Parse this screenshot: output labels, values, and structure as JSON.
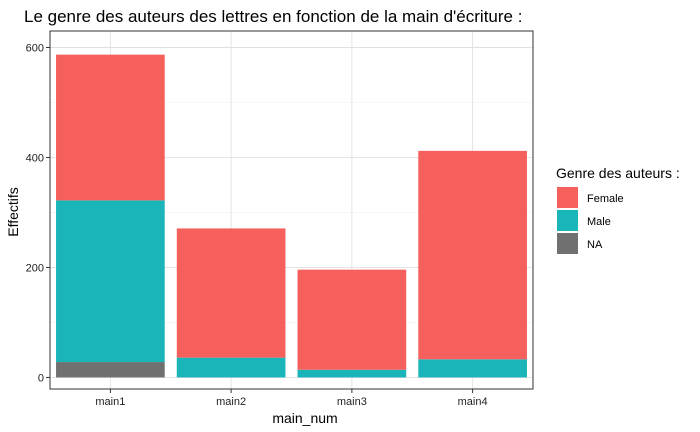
{
  "chart_data": {
    "type": "bar",
    "stacked": true,
    "title": "Le genre des auteurs des lettres en fonction de la main d'écriture :",
    "xlabel": "main_num",
    "ylabel": "Effectifs",
    "categories": [
      "main1",
      "main2",
      "main3",
      "main4"
    ],
    "series": [
      {
        "name": "NA",
        "color": "#707070",
        "values": [
          28,
          0,
          0,
          0
        ]
      },
      {
        "name": "Male",
        "color": "#1AB5B9",
        "values": [
          294,
          36,
          14,
          33
        ]
      },
      {
        "name": "Female",
        "color": "#F5605D",
        "values": [
          265,
          235,
          182,
          379
        ]
      }
    ],
    "ylim": [
      -21,
      630
    ],
    "yticks": [
      0,
      200,
      400,
      600
    ],
    "grid": true,
    "legend": {
      "title": "Genre des auteurs :",
      "position": "right",
      "entries": [
        "Female",
        "Male",
        "NA"
      ]
    }
  }
}
